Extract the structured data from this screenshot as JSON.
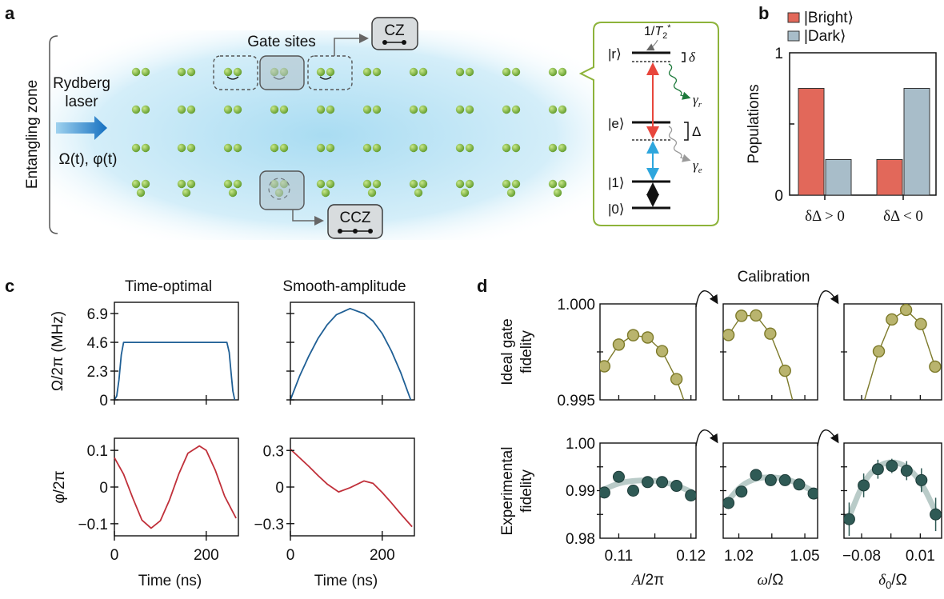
{
  "panel_labels": {
    "a": "a",
    "b": "b",
    "c": "c",
    "d": "d"
  },
  "colors": {
    "glow": "#bfe6f5",
    "atom": "#7cb83a",
    "inset_border": "#8db33a",
    "bright": "#e2685a",
    "dark": "#a8bdc9",
    "amplitude": "#1f5f95",
    "phase": "#c0303a",
    "ideal_marker": "#b9b46e",
    "ideal_line": "#7d7a2a",
    "exp_marker": "#2f5a55",
    "exp_fit": "#b9cbc8",
    "laser_arrow": "#1570c0",
    "red_arrow": "#e8463c",
    "blue_arrow": "#2ea6dd",
    "gamma_r": "#1e7a3c",
    "gamma_e": "#9a9a9a"
  },
  "panel_a": {
    "zone_label": "Entangling zone",
    "laser_label_1": "Rydberg",
    "laser_label_2": "laser",
    "drive_label": "Ω(t), φ(t)",
    "gate_sites_label": "Gate sites",
    "cz_label": "CZ",
    "ccz_label": "CCZ",
    "atom_rows": 4,
    "atom_columns": 10,
    "levels": {
      "r": "|r⟩",
      "e": "|e⟩",
      "one": "|1⟩",
      "zero": "|0⟩",
      "delta": "δ",
      "Delta": "Δ",
      "t2_pre": "1/",
      "t2_T": "T",
      "t2_sub": "2",
      "t2_sup": "*",
      "gamma": "γ",
      "gamma_r_sub": "r",
      "gamma_e_sub": "e"
    }
  },
  "chart_data": [
    {
      "id": "b",
      "type": "bar",
      "ylabel": "Populations",
      "ylim": [
        0,
        1
      ],
      "yticks": [
        "0",
        "1"
      ],
      "categories": [
        "δΔ > 0",
        "δΔ < 0"
      ],
      "legend_placement": "top",
      "series": [
        {
          "name": "|Bright⟩",
          "values": [
            0.75,
            0.25
          ]
        },
        {
          "name": "|Dark⟩",
          "values": [
            0.25,
            0.75
          ]
        }
      ]
    },
    {
      "id": "c-amp-time-optimal",
      "type": "line",
      "title": "Time-optimal",
      "ylabel": "Ω/2π (MHz)",
      "xlim": [
        0,
        270
      ],
      "ylim": [
        0,
        7.8
      ],
      "yticks": [
        0,
        2.3,
        4.6,
        6.9
      ],
      "xticks": [
        0,
        200
      ],
      "x": [
        0,
        5,
        10,
        15,
        20,
        245,
        250,
        255,
        258,
        262
      ],
      "y": [
        0,
        0.3,
        1.6,
        3.6,
        4.6,
        4.6,
        3.8,
        1.8,
        0.7,
        0
      ]
    },
    {
      "id": "c-amp-smooth",
      "type": "line",
      "title": "Smooth-amplitude",
      "xlim": [
        0,
        270
      ],
      "ylim": [
        0,
        7.8
      ],
      "xticks": [
        0,
        200
      ],
      "x": [
        0,
        20,
        40,
        60,
        80,
        100,
        130,
        160,
        180,
        200,
        220,
        240,
        262
      ],
      "y": [
        0,
        1.9,
        3.5,
        4.9,
        6.0,
        6.8,
        7.3,
        6.9,
        6.3,
        5.3,
        3.9,
        2.2,
        0
      ]
    },
    {
      "id": "c-phase-time-optimal",
      "type": "line",
      "ylabel": "φ/2π",
      "xlabel": "Time (ns)",
      "xlim": [
        0,
        270
      ],
      "ylim": [
        -0.133,
        0.133
      ],
      "yticks": [
        -0.1,
        0,
        0.1
      ],
      "ytick_labels": [
        "−0.1",
        "0",
        "0.1"
      ],
      "xticks": [
        0,
        200
      ],
      "x": [
        0,
        20,
        40,
        60,
        80,
        100,
        120,
        140,
        160,
        185,
        200,
        220,
        240,
        265
      ],
      "y": [
        0.08,
        0.035,
        -0.03,
        -0.09,
        -0.112,
        -0.092,
        -0.035,
        0.035,
        0.092,
        0.112,
        0.1,
        0.045,
        -0.025,
        -0.085
      ]
    },
    {
      "id": "c-phase-smooth",
      "type": "line",
      "xlabel": "Time (ns)",
      "xlim": [
        0,
        270
      ],
      "ylim": [
        -0.4,
        0.4
      ],
      "yticks": [
        -0.3,
        0,
        0.3
      ],
      "ytick_labels": [
        "−0.3",
        "0",
        "0.3"
      ],
      "xticks": [
        0,
        200
      ],
      "x": [
        0,
        20,
        40,
        60,
        80,
        105,
        130,
        160,
        180,
        200,
        220,
        240,
        265
      ],
      "y": [
        0.31,
        0.24,
        0.17,
        0.095,
        0.025,
        -0.04,
        -0.005,
        0.05,
        0.03,
        -0.045,
        -0.13,
        -0.22,
        -0.325
      ]
    }
  ],
  "calibration": {
    "title": "Calibration",
    "ideal_ylabel_1": "Ideal gate",
    "ideal_ylabel_2": "fidelity",
    "exp_ylabel_1": "Experimental",
    "exp_ylabel_2": "fidelity",
    "ideal_ylim": [
      0.995,
      1.0
    ],
    "ideal_ytick_labels": [
      "0.995",
      "1.000"
    ],
    "exp_ylim": [
      0.98,
      1.0
    ],
    "exp_ytick_labels": [
      "0.98",
      "0.99",
      "1.00"
    ],
    "panels": [
      {
        "xlabel": "A/2π",
        "xlabel_italic": "A",
        "xlabel_rest": "/2π",
        "xlim": [
          0.1074,
          0.1207
        ],
        "xticks": [
          0.11,
          0.12
        ],
        "xtick_labels": [
          "0.11",
          "0.12"
        ],
        "minor_xticks": [
          0.115
        ],
        "ideal_x": [
          0.108,
          0.11,
          0.112,
          0.114,
          0.116,
          0.118,
          0.119
        ],
        "ideal_y": [
          0.99675,
          0.99788,
          0.99837,
          0.99825,
          0.99754,
          0.99608,
          0.995
        ],
        "exp_x": [
          0.108,
          0.11,
          0.112,
          0.114,
          0.116,
          0.118,
          0.12
        ],
        "exp_y": [
          0.9896,
          0.9929,
          0.99,
          0.9918,
          0.9918,
          0.991,
          0.989
        ],
        "exp_err": [
          0.0012,
          0.0008,
          0.0011,
          0.0009,
          0.0009,
          0.001,
          0.0011
        ],
        "fit_y": [
          0.9903,
          0.9916,
          0.9921,
          0.9922,
          0.9919,
          0.9911,
          0.9898
        ]
      },
      {
        "xlabel": "ω/Ω",
        "xlabel_italic": "ω",
        "xlabel_rest": "/Ω",
        "xlim": [
          1.0129,
          1.0558
        ],
        "xticks": [
          1.02,
          1.05
        ],
        "xtick_labels": [
          "1.02",
          "1.05"
        ],
        "minor_xticks": [
          1.035
        ],
        "ideal_x": [
          1.0153,
          1.0212,
          1.0278,
          1.0343,
          1.041,
          1.0444
        ],
        "ideal_y": [
          0.99838,
          0.99938,
          0.9994,
          0.99845,
          0.99652,
          0.995
        ],
        "exp_x": [
          1.0153,
          1.0212,
          1.0278,
          1.0345,
          1.041,
          1.0474,
          1.054
        ],
        "exp_y": [
          0.9874,
          0.9898,
          0.9933,
          0.9922,
          0.9922,
          0.9913,
          0.9894
        ],
        "exp_err": [
          0.0012,
          0.001,
          0.0008,
          0.0008,
          0.0008,
          0.0009,
          0.001
        ],
        "fit_y": [
          0.988,
          0.9912,
          0.9926,
          0.9929,
          0.9925,
          0.9915,
          0.9898
        ]
      },
      {
        "xlabel": "δ0/Ω",
        "xlabel_italic": "δ",
        "xlabel_sub": "0",
        "xlabel_rest": "/Ω",
        "xlim": [
          -0.107,
          0.0427
        ],
        "xticks": [
          -0.08,
          0.01
        ],
        "xtick_labels": [
          "−0.08",
          "0.01"
        ],
        "minor_xticks": [
          -0.035
        ],
        "ideal_x": [
          -0.0755,
          -0.0536,
          -0.0336,
          -0.0118,
          0.0109,
          0.0327
        ],
        "ideal_y": [
          0.995,
          0.99753,
          0.99919,
          0.99969,
          0.99895,
          0.99673
        ],
        "exp_x": [
          -0.0991,
          -0.0768,
          -0.055,
          -0.0336,
          -0.0109,
          0.0118,
          0.0336
        ],
        "exp_y": [
          0.984,
          0.9911,
          0.9945,
          0.9952,
          0.9942,
          0.9922,
          0.985
        ],
        "exp_err": [
          0.0035,
          0.0025,
          0.002,
          0.0015,
          0.002,
          0.0025,
          0.0035
        ],
        "fit_y": [
          0.9845,
          0.992,
          0.9953,
          0.9962,
          0.9952,
          0.9918,
          0.9855
        ]
      }
    ]
  }
}
